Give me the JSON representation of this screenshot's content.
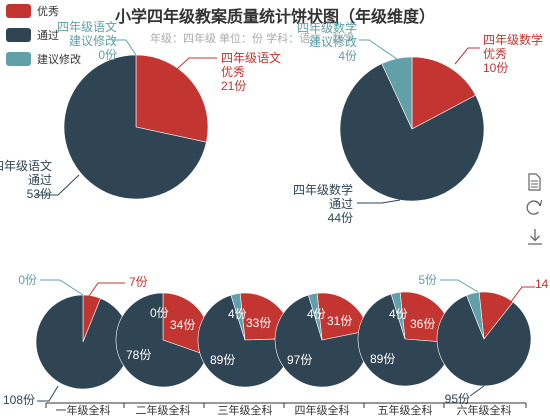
{
  "title": "小学四年级教案质量统计饼状图（年级维度）",
  "subtitle": "年级：四年级    单位：份    学科：语文、数学",
  "legend": [
    {
      "label": "优秀",
      "color": "#c23531"
    },
    {
      "label": "通过",
      "color": "#2f4554"
    },
    {
      "label": "建议修改",
      "color": "#61a0a8"
    }
  ],
  "toolbox": [
    {
      "name": "data-view-icon"
    },
    {
      "name": "restore-icon"
    },
    {
      "name": "save-image-icon"
    }
  ],
  "chart_data": [
    {
      "type": "pie",
      "name": "四年级语文",
      "series": [
        {
          "label": "优秀",
          "value": 21,
          "data_label": [
            "四年级语文",
            "优秀",
            "21份"
          ]
        },
        {
          "label": "通过",
          "value": 53,
          "data_label": [
            "四年级语文",
            "通过",
            "53份"
          ]
        },
        {
          "label": "建议修改",
          "value": 0,
          "data_label": [
            "四年级语文",
            "建议修改",
            "0份"
          ]
        }
      ]
    },
    {
      "type": "pie",
      "name": "四年级数学",
      "series": [
        {
          "label": "优秀",
          "value": 10,
          "data_label": [
            "四年级数学",
            "优秀",
            "10份"
          ]
        },
        {
          "label": "通过",
          "value": 44,
          "data_label": [
            "四年级数学",
            "通过",
            "44份"
          ]
        },
        {
          "label": "建议修改",
          "value": 4,
          "data_label": [
            "四年级数学",
            "建议修改",
            "4份"
          ]
        }
      ]
    },
    {
      "type": "pie",
      "name": "一年级全科",
      "category_label": "一年级全科",
      "series": [
        {
          "label": "优秀",
          "value": 7,
          "data_label": [
            "7份"
          ]
        },
        {
          "label": "通过",
          "value": 108,
          "data_label": [
            "108份"
          ]
        },
        {
          "label": "建议修改",
          "value": 0,
          "data_label": [
            "0份"
          ]
        }
      ]
    },
    {
      "type": "pie",
      "name": "二年级全科",
      "category_label": "二年级全科",
      "series": [
        {
          "label": "优秀",
          "value": 34,
          "data_label": [
            "34份"
          ]
        },
        {
          "label": "通过",
          "value": 78,
          "data_label": [
            "78份"
          ]
        },
        {
          "label": "建议修改",
          "value": 0,
          "data_label": [
            "0份"
          ]
        }
      ]
    },
    {
      "type": "pie",
      "name": "三年级全科",
      "category_label": "三年级全科",
      "series": [
        {
          "label": "优秀",
          "value": 33,
          "data_label": [
            "33份"
          ]
        },
        {
          "label": "通过",
          "value": 89,
          "data_label": [
            "89份"
          ]
        },
        {
          "label": "建议修改",
          "value": 4,
          "data_label": [
            "4份"
          ]
        }
      ]
    },
    {
      "type": "pie",
      "name": "四年级全科",
      "category_label": "四年级全科",
      "series": [
        {
          "label": "优秀",
          "value": 31,
          "data_label": [
            "31份"
          ]
        },
        {
          "label": "通过",
          "value": 97,
          "data_label": [
            "97份"
          ]
        },
        {
          "label": "建议修改",
          "value": 4,
          "data_label": [
            "4份"
          ]
        }
      ]
    },
    {
      "type": "pie",
      "name": "五年级全科",
      "category_label": "五年级全科",
      "series": [
        {
          "label": "优秀",
          "value": 36,
          "data_label": [
            "36份"
          ]
        },
        {
          "label": "通过",
          "value": 89,
          "data_label": [
            "89份"
          ]
        },
        {
          "label": "建议修改",
          "value": 4,
          "data_label": [
            "4份"
          ]
        }
      ]
    },
    {
      "type": "pie",
      "name": "六年级全科",
      "category_label": "六年级全科",
      "series": [
        {
          "label": "优秀",
          "value": 14,
          "data_label": [
            "14"
          ]
        },
        {
          "label": "通过",
          "value": 95,
          "data_label": [
            "95份"
          ]
        },
        {
          "label": "建议修改",
          "value": 5,
          "data_label": [
            "5份"
          ]
        }
      ]
    }
  ]
}
